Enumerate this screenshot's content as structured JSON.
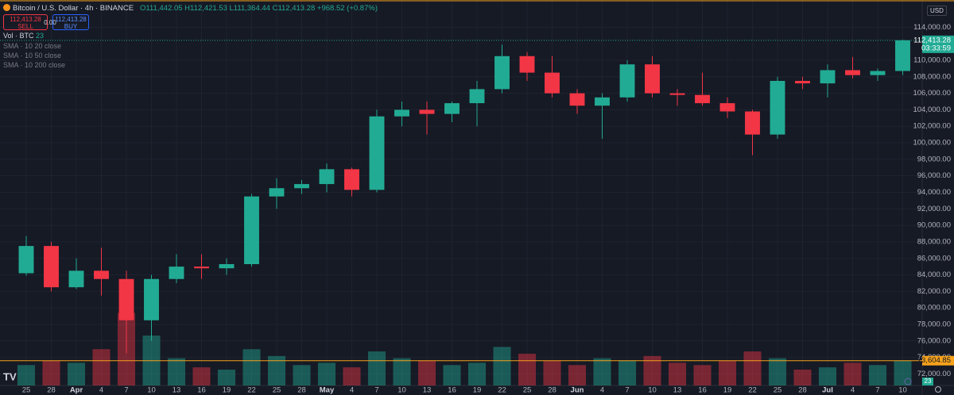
{
  "header": {
    "symbol": "Bitcoin / U.S. Dollar · 4h · BINANCE",
    "open": "O111,442.05",
    "high": "H112,421.53",
    "low": "L111,364.44",
    "close": "C112,413.28",
    "change": "+968.52 (+0.87%)",
    "sell_price": "112,413.28",
    "sell": "SELL",
    "spread": "0.00",
    "buy_price": "112,413.28",
    "buy": "BUY",
    "vol_label": "Vol · BTC",
    "vol_value": "23",
    "indicators": [
      "SMA · 10 20 close",
      "SMA · 10 50 close",
      "SMA · 10 200 close"
    ],
    "currency": "USD",
    "countdown": "03:33:59"
  },
  "chart_data": {
    "type": "candlestick",
    "up_color": "#22ab94",
    "down_color": "#f23645",
    "grid": true,
    "categories": [
      "25",
      "28",
      "Apr",
      "4",
      "7",
      "10",
      "13",
      "16",
      "19",
      "22",
      "25",
      "28",
      "May",
      "4",
      "7",
      "10",
      "13",
      "16",
      "19",
      "22",
      "25",
      "28",
      "Jun",
      "4",
      "7",
      "10",
      "13",
      "16",
      "19",
      "22",
      "25",
      "28",
      "Jul",
      "4",
      "7",
      "10"
    ],
    "open": [
      84200,
      87500,
      82500,
      84500,
      83500,
      78500,
      83500,
      85000,
      84800,
      85300,
      93500,
      94500,
      95000,
      96800,
      94300,
      103200,
      104000,
      103500,
      104800,
      106500,
      110500,
      108500,
      106000,
      104500,
      105500,
      109500,
      106000,
      105800,
      104800,
      103800,
      101000,
      107500,
      107200,
      108800,
      108200,
      108700
    ],
    "high": [
      88700,
      88000,
      86000,
      87300,
      84500,
      84000,
      86500,
      86500,
      86000,
      93800,
      95700,
      95500,
      97500,
      97000,
      104000,
      105000,
      105000,
      105000,
      107500,
      111900,
      111000,
      110500,
      106500,
      106000,
      110000,
      110500,
      106500,
      108500,
      105500,
      104000,
      108000,
      108000,
      109500,
      110400,
      109000,
      112500
    ],
    "low": [
      83900,
      82000,
      82300,
      81500,
      74500,
      76000,
      83000,
      83500,
      84000,
      85000,
      92000,
      93800,
      94000,
      93500,
      94000,
      102000,
      101000,
      102500,
      102000,
      106000,
      107500,
      105500,
      103500,
      100500,
      105000,
      105500,
      104500,
      104500,
      103000,
      98500,
      100500,
      106500,
      105500,
      107800,
      107500,
      108200
    ],
    "close": [
      87500,
      82500,
      84500,
      83500,
      78500,
      83500,
      85000,
      84800,
      85300,
      93500,
      94500,
      95000,
      96800,
      94300,
      103200,
      104000,
      103500,
      104800,
      106500,
      110500,
      108500,
      106000,
      104500,
      105500,
      109500,
      106000,
      105800,
      104800,
      103800,
      101000,
      107500,
      107200,
      108800,
      108200,
      108700,
      112413.28
    ],
    "volume": [
      9000,
      11000,
      10000,
      16000,
      32000,
      22000,
      12000,
      8000,
      7000,
      16000,
      13000,
      9000,
      10000,
      8000,
      15000,
      12000,
      11000,
      9000,
      10000,
      17000,
      14000,
      11000,
      9000,
      12000,
      11000,
      13000,
      10000,
      9000,
      11000,
      15000,
      12000,
      7000,
      8000,
      10000,
      9000,
      11000
    ],
    "volume_ylim": [
      0,
      100000
    ],
    "ylim": [
      70600,
      117300
    ],
    "yticks": [
      {
        "value": 72000,
        "label": "72,000.00"
      },
      {
        "value": 74000,
        "label": "74,000.00"
      },
      {
        "value": 76000,
        "label": "76,000.00"
      },
      {
        "value": 78000,
        "label": "78,000.00"
      },
      {
        "value": 80000,
        "label": "80,000.00"
      },
      {
        "value": 82000,
        "label": "82,000.00"
      },
      {
        "value": 84000,
        "label": "84,000.00"
      },
      {
        "value": 86000,
        "label": "86,000.00"
      },
      {
        "value": 88000,
        "label": "88,000.00"
      },
      {
        "value": 90000,
        "label": "90,000.00"
      },
      {
        "value": 92000,
        "label": "92,000.00"
      },
      {
        "value": 94000,
        "label": "94,000.00"
      },
      {
        "value": 96000,
        "label": "96,000.00"
      },
      {
        "value": 98000,
        "label": "98,000.00"
      },
      {
        "value": 100000,
        "label": "100,000.00"
      },
      {
        "value": 102000,
        "label": "102,000.00"
      },
      {
        "value": 104000,
        "label": "104,000.00"
      },
      {
        "value": 106000,
        "label": "106,000.00"
      },
      {
        "value": 108000,
        "label": "108,000.00"
      },
      {
        "value": 110000,
        "label": "110,000.00"
      },
      {
        "value": 114000,
        "label": "114,000.00"
      }
    ],
    "last_price": {
      "value": 112413.28,
      "label": "112,413.28"
    },
    "hline": {
      "value": 73604.85,
      "label": "73,604.85",
      "color": "#f7a21b"
    }
  }
}
